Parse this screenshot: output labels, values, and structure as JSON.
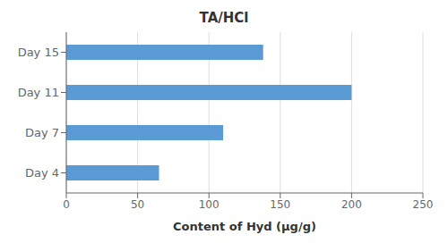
{
  "chart_data": {
    "type": "bar",
    "orientation": "horizontal",
    "title": "TA/HCl",
    "xlabel": "Content of Hyd (μg/g)",
    "categories": [
      "Day 4",
      "Day 7",
      "Day 11",
      "Day 15"
    ],
    "values": [
      65,
      110,
      200,
      138
    ],
    "color": "#5b9bd5",
    "xlim": [
      0,
      250
    ],
    "xticks": [
      0,
      50,
      100,
      150,
      200,
      250
    ],
    "grid": true
  }
}
